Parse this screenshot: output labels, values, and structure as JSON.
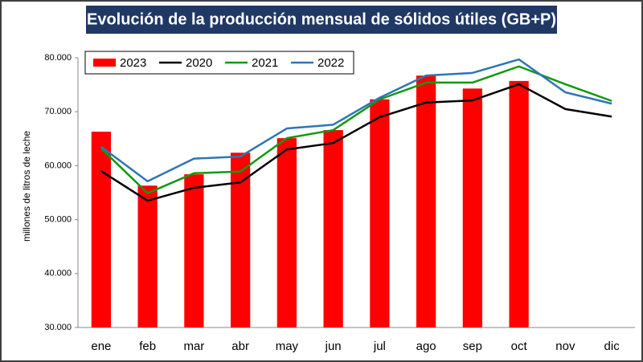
{
  "chart_data": {
    "type": "bar",
    "title": "Evolución de la producción mensual de sólidos útiles (GB+P)",
    "y_label": "millones de litros de leche",
    "categories": [
      "ene",
      "feb",
      "mar",
      "abr",
      "may",
      "jun",
      "jul",
      "ago",
      "sep",
      "oct",
      "nov",
      "dic"
    ],
    "series": [
      {
        "name": "2023",
        "type": "bar",
        "color": "#ff0000",
        "values": [
          66300,
          56300,
          58400,
          62400,
          65100,
          66600,
          72300,
          76700,
          74300,
          75700,
          null,
          null
        ]
      },
      {
        "name": "2020",
        "type": "line",
        "color": "#000000",
        "values": [
          59000,
          53500,
          55900,
          56900,
          63000,
          64200,
          69000,
          71700,
          72100,
          75100,
          70500,
          69100
        ]
      },
      {
        "name": "2021",
        "type": "line",
        "color": "#119911",
        "values": [
          63200,
          54900,
          58600,
          58900,
          65100,
          66600,
          72300,
          75400,
          75400,
          78400,
          75100,
          72000
        ]
      },
      {
        "name": "2022",
        "type": "line",
        "color": "#2e75b6",
        "values": [
          63500,
          57100,
          61300,
          61700,
          66900,
          67600,
          72600,
          76700,
          77200,
          79700,
          73600,
          71500
        ]
      }
    ],
    "ylim": [
      30000,
      80000
    ],
    "yticks": [
      {
        "value": 30000,
        "label": "30.000"
      },
      {
        "value": 40000,
        "label": "40.000"
      },
      {
        "value": 50000,
        "label": "50.000"
      },
      {
        "value": 60000,
        "label": "60.000"
      },
      {
        "value": 70000,
        "label": "70.000"
      },
      {
        "value": 80000,
        "label": "80.000"
      }
    ],
    "grid": false,
    "legend_position": "top-left"
  }
}
